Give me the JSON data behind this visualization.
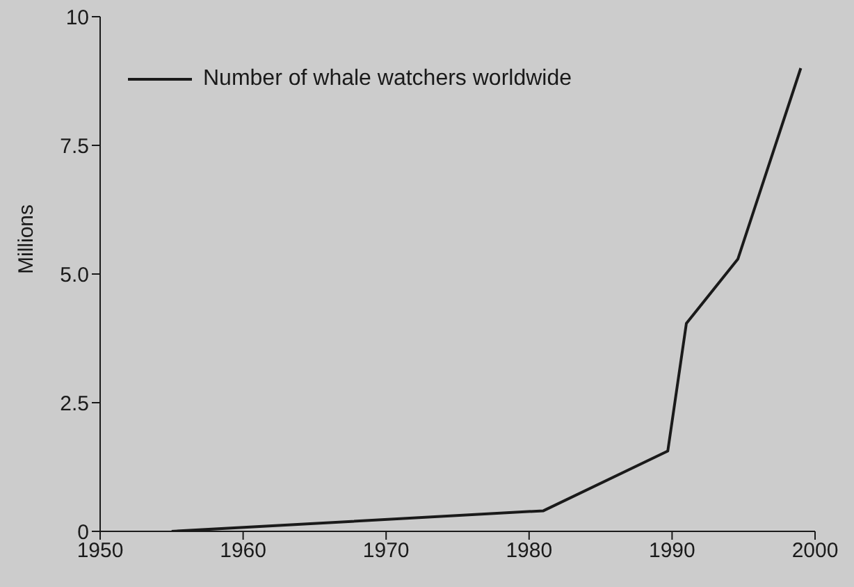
{
  "chart_data": {
    "type": "line",
    "ylabel": "Millions",
    "x": [
      1955,
      1981,
      1989.7,
      1991,
      1994.6,
      1999
    ],
    "series": [
      {
        "name": "Number of whale watchers worldwide",
        "color": "#1a1a1a",
        "values": [
          0,
          0.4,
          1.56,
          4.04,
          5.29,
          9
        ]
      }
    ],
    "xlim": [
      1950,
      2000
    ],
    "xticks": [
      1950,
      1960,
      1970,
      1980,
      1990,
      2000
    ],
    "ylim": [
      0,
      10
    ],
    "yticks": [
      {
        "value": 0,
        "label": "0"
      },
      {
        "value": 2.5,
        "label": "2.5"
      },
      {
        "value": 5,
        "label": "5.0"
      },
      {
        "value": 7.5,
        "label": "7.5"
      },
      {
        "value": 10,
        "label": "10"
      }
    ],
    "grid": false,
    "legend": "top left",
    "marker": "none",
    "line_style": "solid"
  }
}
